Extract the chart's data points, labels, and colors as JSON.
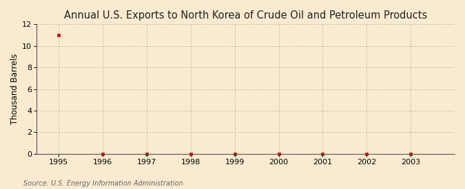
{
  "title": "Annual U.S. Exports to North Korea of Crude Oil and Petroleum Products",
  "ylabel": "Thousand Barrels",
  "source_text": "Source: U.S. Energy Information Administration",
  "x_data": [
    1995,
    1996,
    1997,
    1998,
    1999,
    2000,
    2001,
    2002,
    2003
  ],
  "y_data": [
    11,
    0,
    0,
    0,
    0,
    0,
    0,
    0,
    0
  ],
  "xlim": [
    1994.5,
    2004.0
  ],
  "ylim": [
    0,
    12
  ],
  "yticks": [
    0,
    2,
    4,
    6,
    8,
    10,
    12
  ],
  "xticks": [
    1995,
    1996,
    1997,
    1998,
    1999,
    2000,
    2001,
    2002,
    2003
  ],
  "background_color": "#faebd0",
  "plot_bg_color": "#faebd0",
  "grid_color": "#aaaaaa",
  "marker_color": "#cc0000",
  "title_fontsize": 10.5,
  "axis_label_fontsize": 8.5,
  "tick_fontsize": 8,
  "source_fontsize": 7
}
